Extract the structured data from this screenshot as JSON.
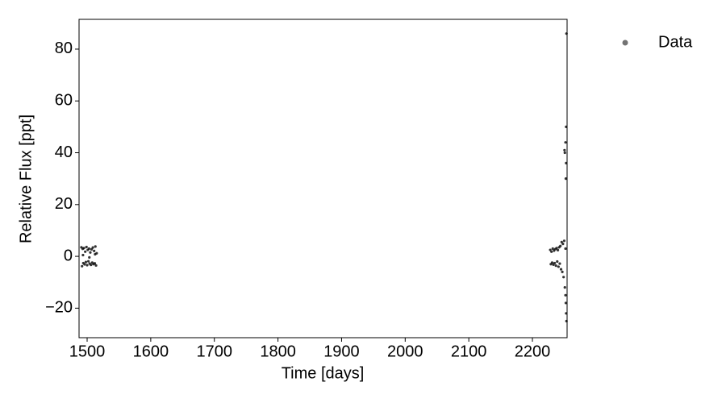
{
  "chart_data": {
    "type": "scatter",
    "xlabel": "Time [days]",
    "ylabel": "Relative Flux [ppt]",
    "series": [
      {
        "name": "Data",
        "color": "#000000",
        "x": [
          1491,
          1492,
          1493,
          1494,
          1495,
          1496,
          1497,
          1498,
          1499,
          1500,
          1501,
          1502,
          1503,
          1504,
          1505,
          1506,
          1507,
          1508,
          1509,
          1510,
          1511,
          1512,
          1513,
          1514,
          1515,
          1493.5,
          1503.5,
          1512.5,
          2228,
          2229,
          2230,
          2231,
          2232,
          2233,
          2234,
          2235,
          2236,
          2237,
          2238,
          2239,
          2240,
          2241,
          2242,
          2243,
          2244,
          2245,
          2246,
          2247,
          2248,
          2249,
          2250,
          2251,
          2252,
          2252.5,
          2253,
          2253.5,
          2250.5,
          2251,
          2252,
          2253,
          2253.5,
          2252.5,
          2253,
          2252
        ],
        "values": [
          3.5,
          -3.8,
          2.9,
          -2.6,
          3.2,
          -3.1,
          1.8,
          -2.2,
          3.6,
          -3.4,
          2.5,
          -1.9,
          3.0,
          -2.8,
          1.5,
          -3.3,
          2.7,
          -2.4,
          3.4,
          -3.0,
          2.1,
          -2.7,
          3.8,
          -3.5,
          1.2,
          0.5,
          -0.4,
          0.8,
          2.5,
          -3.0,
          1.8,
          -2.4,
          3.0,
          -3.2,
          2.2,
          -2.6,
          2.8,
          -3.6,
          3.2,
          -2.0,
          2.4,
          -4.0,
          3.5,
          -2.8,
          4.0,
          -5.0,
          5.5,
          -6.0,
          4.8,
          -8.0,
          6.0,
          -12.0,
          3.0,
          -18,
          -22,
          -25,
          41,
          40,
          44,
          50,
          86,
          30,
          36,
          -15
        ]
      }
    ],
    "xlim": [
      1487.3,
      2254.5
    ],
    "ylim": [
      -31.4,
      91.5
    ],
    "xticks": [
      1500,
      1600,
      1700,
      1800,
      1900,
      2000,
      2100,
      2200
    ],
    "yticks": [
      {
        "value": -20,
        "label": "−20"
      },
      0,
      20,
      40,
      60,
      80
    ],
    "legend": "outside-right"
  }
}
